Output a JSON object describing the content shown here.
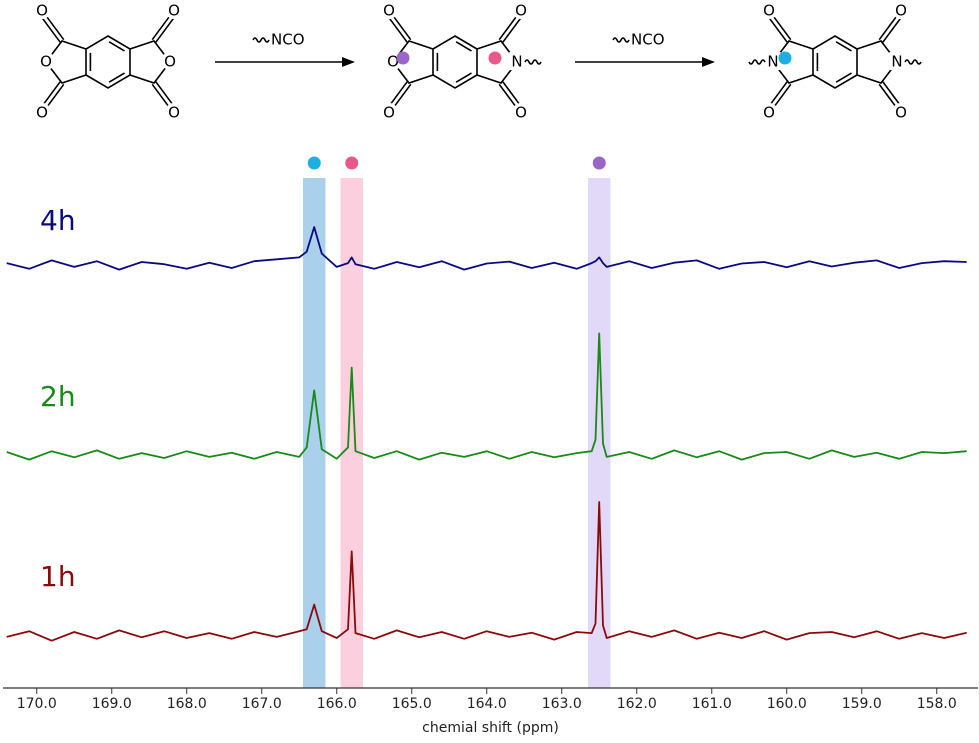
{
  "scheme": {
    "arrow_labels": [
      "NCO",
      "NCO"
    ],
    "molecules": [
      {
        "left": "O",
        "right": "O",
        "carbonyls": [
          "O",
          "O",
          "O",
          "O"
        ]
      },
      {
        "left": "O",
        "right": "N",
        "carbonyls": [
          "O",
          "O",
          "O",
          "O"
        ]
      },
      {
        "left": "N",
        "right": "N",
        "carbonyls": [
          "O",
          "O",
          "O",
          "O"
        ]
      }
    ]
  },
  "chart_data": {
    "type": "line",
    "xlabel": "chemial shift (ppm)",
    "xlim": [
      170.45,
      157.45
    ],
    "xticks": [
      {
        "value": 170,
        "label": "170.0"
      },
      {
        "value": 169,
        "label": "169.0"
      },
      {
        "value": 168,
        "label": "168.0"
      },
      {
        "value": 167,
        "label": "167.0"
      },
      {
        "value": 166,
        "label": "166.0"
      },
      {
        "value": 165,
        "label": "165.0"
      },
      {
        "value": 164,
        "label": "164.0"
      },
      {
        "value": 163,
        "label": "163.0"
      },
      {
        "value": 162,
        "label": "162.0"
      },
      {
        "value": 161,
        "label": "161.0"
      },
      {
        "value": 160,
        "label": "160.0"
      },
      {
        "value": 159,
        "label": "159.0"
      },
      {
        "value": 158,
        "label": "158.0"
      }
    ],
    "highlights": [
      {
        "xrange": [
          166.45,
          166.15
        ],
        "color": "#8ec0e4",
        "dot": "#1eaee2"
      },
      {
        "xrange": [
          165.95,
          165.65
        ],
        "color": "#fbbfd4",
        "dot": "#e8588c"
      },
      {
        "xrange": [
          162.65,
          162.35
        ],
        "color": "#d8cbf6",
        "dot": "#9a66c8"
      }
    ],
    "x": [
      170.4,
      170.1,
      169.8,
      169.5,
      169.2,
      168.9,
      168.6,
      168.3,
      168.0,
      167.7,
      167.4,
      167.1,
      166.8,
      166.5,
      166.4,
      166.3,
      166.2,
      166.0,
      165.85,
      165.8,
      165.75,
      165.5,
      165.2,
      164.9,
      164.6,
      164.3,
      164.0,
      163.7,
      163.4,
      163.1,
      162.8,
      162.6,
      162.55,
      162.5,
      162.45,
      162.4,
      162.1,
      161.8,
      161.5,
      161.2,
      160.9,
      160.6,
      160.3,
      160.0,
      159.7,
      159.4,
      159.1,
      158.8,
      158.5,
      158.2,
      157.9,
      157.6
    ],
    "series": [
      {
        "name": "4h",
        "color": "#0a0a80",
        "values": [
          0.05,
          -0.1,
          0.12,
          -0.05,
          0.1,
          -0.12,
          0.08,
          0.02,
          -0.1,
          0.06,
          -0.08,
          0.1,
          0.15,
          0.2,
          0.35,
          1.0,
          0.3,
          -0.05,
          0.05,
          0.2,
          0.02,
          -0.1,
          0.08,
          -0.06,
          0.1,
          -0.12,
          0.04,
          0.09,
          -0.08,
          0.06,
          -0.1,
          0.05,
          0.1,
          0.2,
          0.05,
          -0.05,
          0.1,
          -0.08,
          0.06,
          0.12,
          -0.1,
          0.04,
          0.08,
          -0.06,
          0.1,
          -0.04,
          0.06,
          0.12,
          -0.08,
          0.05,
          0.1,
          0.08
        ]
      },
      {
        "name": "2h",
        "color": "#178a17",
        "values": [
          0.08,
          -0.12,
          0.1,
          -0.06,
          0.12,
          -0.1,
          0.05,
          -0.08,
          0.1,
          -0.05,
          0.06,
          -0.1,
          0.08,
          -0.05,
          0.2,
          1.7,
          0.15,
          -0.1,
          0.2,
          2.3,
          0.1,
          -0.08,
          0.1,
          -0.12,
          0.06,
          -0.05,
          0.1,
          -0.1,
          0.08,
          -0.06,
          0.05,
          0.1,
          0.4,
          3.2,
          0.3,
          -0.05,
          0.08,
          -0.1,
          0.12,
          -0.06,
          0.1,
          -0.12,
          0.05,
          0.08,
          -0.1,
          0.12,
          -0.05,
          0.06,
          -0.1,
          0.08,
          0.05,
          0.1
        ]
      },
      {
        "name": "1h",
        "color": "#8a0a0a",
        "values": [
          -0.05,
          0.1,
          -0.15,
          0.08,
          -0.1,
          0.12,
          -0.06,
          0.1,
          -0.08,
          0.05,
          -0.1,
          0.08,
          -0.05,
          0.1,
          0.15,
          0.8,
          0.1,
          -0.08,
          0.15,
          2.2,
          0.05,
          -0.1,
          0.12,
          -0.06,
          0.08,
          -0.1,
          0.1,
          -0.05,
          0.06,
          -0.12,
          0.08,
          0.05,
          0.3,
          3.5,
          0.25,
          -0.08,
          0.1,
          -0.05,
          0.12,
          -0.1,
          0.06,
          -0.08,
          0.1,
          -0.12,
          0.05,
          0.08,
          -0.06,
          0.1,
          -0.1,
          0.05,
          -0.08,
          0.06
        ]
      }
    ]
  }
}
